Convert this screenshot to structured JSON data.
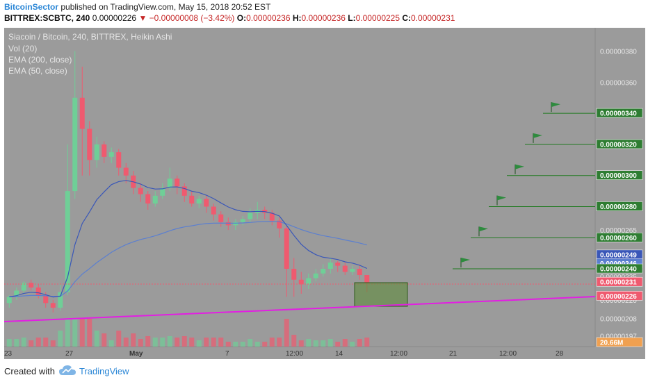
{
  "header": {
    "author": "BitcoinSector",
    "published_text": "published on TradingView.com, May 15, 2018 20:52 EST",
    "symbol": "BITTREX:SCBTC, 240",
    "last": "0.00000226",
    "change": "▼ −0.00000008 (−3.42%)",
    "o_label": "O:",
    "o": "0.00000236",
    "h_label": "H:",
    "h": "0.00000236",
    "l_label": "L:",
    "l": "0.00000225",
    "c_label": "C:",
    "c": "0.00000231"
  },
  "legend": {
    "title": "Siacoin / Bitcoin, 240, BITTREX, Heikin Ashi",
    "vol": "Vol (20)",
    "ema200": "EMA (200, close)",
    "ema50": "EMA (50, close)"
  },
  "footer": {
    "created": "Created with",
    "brand": "TradingView"
  },
  "colors": {
    "background": "#9b9b9b",
    "up": "#6fcf97",
    "down": "#ef5a6f",
    "ema50": "#3a57b8",
    "ema200": "#5b7fd0",
    "trendline": "#e31ee3",
    "target": "#1e7a1e",
    "zone_fill": "#5d8a3a",
    "price_line": "#ef5a6f"
  },
  "chart_data": {
    "type": "candlestick",
    "title": "Siacoin / Bitcoin, 240, BITTREX, Heikin Ashi",
    "x_ticks": [
      "23",
      "27",
      "May",
      "7",
      "12:00",
      "14",
      "12:00",
      "21",
      "12:00",
      "28"
    ],
    "y_ticks": [
      "0.00000380",
      "0.00000360",
      "0.00000265",
      "0.00000235",
      "0.00000220",
      "0.00000208",
      "0.00000197"
    ],
    "y_range": [
      1.9e-06,
      3.95e-06
    ],
    "price_labels": [
      {
        "text": "0.00000340",
        "kind": "target"
      },
      {
        "text": "0.00000320",
        "kind": "target"
      },
      {
        "text": "0.00000300",
        "kind": "target"
      },
      {
        "text": "0.00000280",
        "kind": "target"
      },
      {
        "text": "0.00000260",
        "kind": "target"
      },
      {
        "text": "0.00000249",
        "kind": "ema50"
      },
      {
        "text": "0.00000246",
        "kind": "ema200"
      },
      {
        "text": "0.00000240",
        "kind": "target"
      },
      {
        "text": "0.00000231",
        "kind": "close"
      },
      {
        "text": "0.00000226",
        "kind": "last"
      },
      {
        "text": "20.66M",
        "kind": "volume"
      }
    ],
    "targets": [
      "0.00000240",
      "0.00000260",
      "0.00000280",
      "0.00000300",
      "0.00000320",
      "0.00000340"
    ],
    "current_price": "0.00000231",
    "candles": [
      [
        2.18e-06,
        2.22e-06,
        2.15e-06,
        2.23e-06
      ],
      [
        2.22e-06,
        2.26e-06,
        2.2e-06,
        2.28e-06
      ],
      [
        2.26e-06,
        2.31e-06,
        2.24e-06,
        2.32e-06
      ],
      [
        2.31e-06,
        2.28e-06,
        2.26e-06,
        2.33e-06
      ],
      [
        2.28e-06,
        2.23e-06,
        2.21e-06,
        2.3e-06
      ],
      [
        2.23e-06,
        2.18e-06,
        2.15e-06,
        2.25e-06
      ],
      [
        2.18e-06,
        2.15e-06,
        2.12e-06,
        2.2e-06
      ],
      [
        2.15e-06,
        2.25e-06,
        2.13e-06,
        2.3e-06
      ],
      [
        2.25e-06,
        2.9e-06,
        2.23e-06,
        3.2e-06
      ],
      [
        2.9e-06,
        3.5e-06,
        2.85e-06,
        3.8e-06
      ],
      [
        3.5e-06,
        3.3e-06,
        3e-06,
        3.7e-06
      ],
      [
        3.3e-06,
        3.1e-06,
        3e-06,
        3.35e-06
      ],
      [
        3.1e-06,
        3.2e-06,
        3.05e-06,
        3.25e-06
      ],
      [
        3.2e-06,
        3.12e-06,
        3.08e-06,
        3.22e-06
      ],
      [
        3.12e-06,
        3.15e-06,
        3.08e-06,
        3.18e-06
      ],
      [
        3.15e-06,
        3.05e-06,
        3e-06,
        3.17e-06
      ],
      [
        3.05e-06,
        3e-06,
        2.95e-06,
        3.08e-06
      ],
      [
        3e-06,
        2.92e-06,
        2.88e-06,
        3.03e-06
      ],
      [
        2.92e-06,
        2.88e-06,
        2.83e-06,
        2.95e-06
      ],
      [
        2.88e-06,
        2.82e-06,
        2.78e-06,
        2.9e-06
      ],
      [
        2.82e-06,
        2.87e-06,
        2.8e-06,
        2.9e-06
      ],
      [
        2.87e-06,
        2.92e-06,
        2.85e-06,
        2.95e-06
      ],
      [
        2.92e-06,
        2.98e-06,
        2.9e-06,
        3.05e-06
      ],
      [
        2.98e-06,
        2.93e-06,
        2.88e-06,
        3e-06
      ],
      [
        2.93e-06,
        2.87e-06,
        2.83e-06,
        2.95e-06
      ],
      [
        2.87e-06,
        2.82e-06,
        2.8e-06,
        2.9e-06
      ],
      [
        2.82e-06,
        2.85e-06,
        2.79e-06,
        2.87e-06
      ],
      [
        2.85e-06,
        2.8e-06,
        2.76e-06,
        2.87e-06
      ],
      [
        2.8e-06,
        2.75e-06,
        2.71e-06,
        2.82e-06
      ],
      [
        2.75e-06,
        2.7e-06,
        2.67e-06,
        2.77e-06
      ],
      [
        2.7e-06,
        2.68e-06,
        2.65e-06,
        2.73e-06
      ],
      [
        2.68e-06,
        2.7e-06,
        2.65e-06,
        2.72e-06
      ],
      [
        2.7e-06,
        2.72e-06,
        2.68e-06,
        2.74e-06
      ],
      [
        2.72e-06,
        2.76e-06,
        2.7e-06,
        2.79e-06
      ],
      [
        2.76e-06,
        2.78e-06,
        2.72e-06,
        2.83e-06
      ],
      [
        2.78e-06,
        2.76e-06,
        2.72e-06,
        2.8e-06
      ],
      [
        2.76e-06,
        2.71e-06,
        2.68e-06,
        2.78e-06
      ],
      [
        2.71e-06,
        2.66e-06,
        2.6e-06,
        2.73e-06
      ],
      [
        2.66e-06,
        2.4e-06,
        2.22e-06,
        2.68e-06
      ],
      [
        2.4e-06,
        2.33e-06,
        2.22e-06,
        2.47e-06
      ],
      [
        2.33e-06,
        2.3e-06,
        2.24e-06,
        2.38e-06
      ],
      [
        2.3e-06,
        2.34e-06,
        2.27e-06,
        2.37e-06
      ],
      [
        2.34e-06,
        2.37e-06,
        2.32e-06,
        2.4e-06
      ],
      [
        2.37e-06,
        2.4e-06,
        2.35e-06,
        2.43e-06
      ],
      [
        2.4e-06,
        2.44e-06,
        2.37e-06,
        2.47e-06
      ],
      [
        2.44e-06,
        2.42e-06,
        2.38e-06,
        2.45e-06
      ],
      [
        2.42e-06,
        2.38e-06,
        2.36e-06,
        2.44e-06
      ],
      [
        2.38e-06,
        2.4e-06,
        2.36e-06,
        2.42e-06
      ],
      [
        2.4e-06,
        2.36e-06,
        2.33e-06,
        2.42e-06
      ],
      [
        2.36e-06,
        2.31e-06,
        2.25e-06,
        2.36e-06
      ]
    ]
  }
}
